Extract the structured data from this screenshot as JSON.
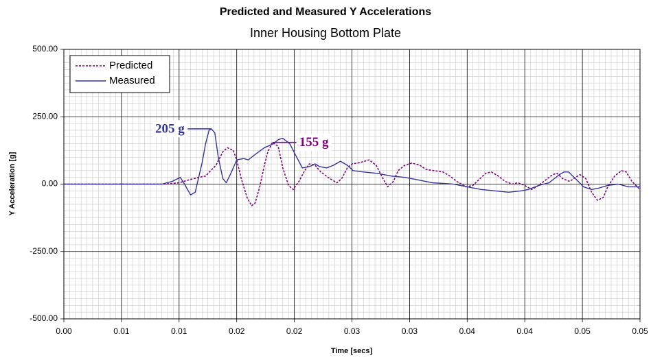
{
  "chart_data": {
    "type": "line",
    "title": "Predicted and Measured Y Accelerations",
    "subtitle": "Inner Housing Bottom Plate",
    "x_label": "Time [secs]",
    "y_label": "Y Acceleration [g]",
    "xlim": [
      0,
      0.05
    ],
    "ylim": [
      -500,
      500
    ],
    "xticks": [
      {
        "value": 0,
        "label": "0.00"
      },
      {
        "value": 0.005,
        "label": "0.01"
      },
      {
        "value": 0.01,
        "label": "0.01"
      },
      {
        "value": 0.015,
        "label": "0.02"
      },
      {
        "value": 0.02,
        "label": "0.02"
      },
      {
        "value": 0.025,
        "label": "0.03"
      },
      {
        "value": 0.03,
        "label": "0.03"
      },
      {
        "value": 0.035,
        "label": "0.04"
      },
      {
        "value": 0.04,
        "label": "0.04"
      },
      {
        "value": 0.045,
        "label": "0.05"
      },
      {
        "value": 0.05,
        "label": "0.05"
      }
    ],
    "yticks": [
      {
        "value": 500,
        "label": "500.00"
      },
      {
        "value": 250,
        "label": "250.00"
      },
      {
        "value": 0,
        "label": "0.00"
      },
      {
        "value": -250,
        "label": "-250.00"
      },
      {
        "value": -500,
        "label": "-500.00"
      }
    ],
    "grid": true,
    "minor_grid": true,
    "legend": "top-left",
    "series": [
      {
        "name": "Predicted",
        "color": "#800080",
        "dashed": true,
        "x": [
          0,
          0.0088,
          0.01,
          0.0108,
          0.0117,
          0.0123,
          0.0132,
          0.0138,
          0.0142,
          0.0147,
          0.015,
          0.0154,
          0.0159,
          0.0163,
          0.0166,
          0.017,
          0.0174,
          0.0177,
          0.0181,
          0.0186,
          0.019,
          0.0195,
          0.0199,
          0.0204,
          0.0209,
          0.0213,
          0.0218,
          0.0223,
          0.0231,
          0.0237,
          0.0241,
          0.0246,
          0.025,
          0.0257,
          0.0265,
          0.0271,
          0.0277,
          0.0281,
          0.0286,
          0.029,
          0.0296,
          0.0302,
          0.0309,
          0.0314,
          0.0321,
          0.0329,
          0.0335,
          0.0341,
          0.0349,
          0.0355,
          0.0361,
          0.0366,
          0.0371,
          0.0377,
          0.0383,
          0.0389,
          0.0394,
          0.04,
          0.0406,
          0.0412,
          0.0418,
          0.0424,
          0.0428,
          0.0433,
          0.0439,
          0.0444,
          0.0448,
          0.0453,
          0.0458,
          0.0463,
          0.0468,
          0.0472,
          0.0478,
          0.0484,
          0.0488,
          0.0493,
          0.05
        ],
        "values": [
          0,
          0,
          5,
          15,
          25,
          30,
          70,
          120,
          135,
          125,
          90,
          20,
          -50,
          -80,
          -70,
          -10,
          70,
          120,
          155,
          140,
          60,
          -5,
          -20,
          10,
          50,
          75,
          70,
          45,
          20,
          5,
          20,
          60,
          75,
          80,
          90,
          70,
          20,
          -10,
          10,
          50,
          70,
          78,
          70,
          55,
          50,
          45,
          30,
          10,
          -10,
          -5,
          20,
          40,
          45,
          30,
          10,
          0,
          5,
          -5,
          -20,
          -5,
          15,
          35,
          40,
          20,
          10,
          25,
          35,
          20,
          -30,
          -60,
          -50,
          -10,
          30,
          50,
          45,
          10,
          -20
        ]
      },
      {
        "name": "Measured",
        "color": "#333399",
        "dashed": false,
        "x": [
          0,
          0.0085,
          0.0094,
          0.0101,
          0.0104,
          0.011,
          0.0114,
          0.012,
          0.0123,
          0.0126,
          0.0128,
          0.0131,
          0.0134,
          0.0138,
          0.0141,
          0.0146,
          0.015,
          0.0156,
          0.016,
          0.0166,
          0.0174,
          0.0182,
          0.0186,
          0.019,
          0.0196,
          0.0202,
          0.0207,
          0.0213,
          0.0218,
          0.0222,
          0.0228,
          0.0234,
          0.024,
          0.0246,
          0.0251,
          0.026,
          0.0272,
          0.0284,
          0.0296,
          0.0308,
          0.032,
          0.0338,
          0.035,
          0.0362,
          0.0374,
          0.0386,
          0.0397,
          0.0403,
          0.0412,
          0.0421,
          0.043,
          0.0434,
          0.0438,
          0.0444,
          0.0451,
          0.0458,
          0.0464,
          0.0472,
          0.0481,
          0.049,
          0.05
        ],
        "values": [
          0,
          0,
          10,
          25,
          5,
          -40,
          -30,
          80,
          150,
          200,
          205,
          190,
          100,
          20,
          5,
          50,
          90,
          95,
          90,
          110,
          135,
          150,
          165,
          170,
          150,
          100,
          60,
          65,
          75,
          65,
          60,
          70,
          85,
          70,
          50,
          45,
          40,
          30,
          25,
          15,
          5,
          0,
          -10,
          -20,
          -25,
          -30,
          -25,
          -20,
          -5,
          5,
          35,
          45,
          45,
          20,
          -10,
          -20,
          -15,
          -5,
          0,
          -10,
          -10
        ]
      }
    ],
    "annotations": [
      {
        "text": "205 g",
        "x": 0.0128,
        "y": 205,
        "color": "#333399"
      },
      {
        "text": "155 g",
        "x": 0.0181,
        "y": 155,
        "color": "#800080"
      }
    ]
  }
}
